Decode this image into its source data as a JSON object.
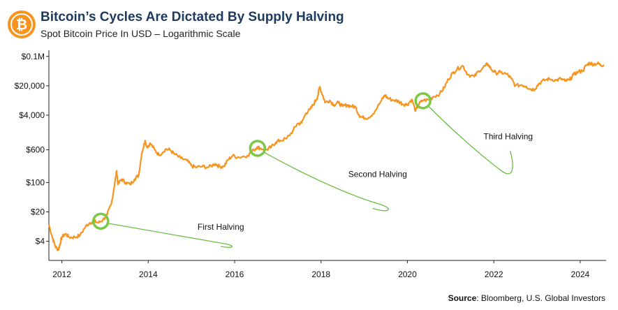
{
  "header": {
    "title": "Bitcoin’s Cycles Are Dictated By Supply Halving",
    "subtitle": "Spot Bitcoin Price In USD – Logarithmic Scale",
    "logo_icon": "bitcoin-coin-icon"
  },
  "footer": {
    "source_label": "Source",
    "source_text": ": Bloomberg, U.S. Global Investors"
  },
  "colors": {
    "line": "#f7941d",
    "halving_ring": "#7ac943",
    "annotation_line": "#5fb832",
    "logo": "#f7941d",
    "title": "#1f3a5f"
  },
  "chart_data": {
    "type": "line",
    "title": "Bitcoin’s Cycles Are Dictated By Supply Halving",
    "subtitle": "Spot Bitcoin Price In USD – Logarithmic Scale",
    "y_scale": "log",
    "xlim": [
      2011.7,
      2024.6
    ],
    "ylim": [
      1.4,
      140000
    ],
    "x_ticks": [
      2012,
      2014,
      2016,
      2018,
      2020,
      2022,
      2024
    ],
    "x_tick_labels": [
      "2012",
      "2014",
      "2016",
      "2018",
      "2020",
      "2022",
      "2024"
    ],
    "y_ticks": [
      4,
      20,
      100,
      600,
      4000,
      20000,
      100000
    ],
    "y_tick_labels": [
      "$4",
      "$20",
      "$100",
      "$600",
      "$4,000",
      "$20,000",
      "$0.1M"
    ],
    "grid": false,
    "series": [
      {
        "values": [
          [
            2011.7,
            10
          ],
          [
            2011.78,
            5
          ],
          [
            2011.85,
            3.0
          ],
          [
            2011.92,
            2.5
          ],
          [
            2011.96,
            3.5
          ],
          [
            2012.0,
            5.0
          ],
          [
            2012.08,
            6.0
          ],
          [
            2012.17,
            5.0
          ],
          [
            2012.3,
            5.0
          ],
          [
            2012.42,
            5.5
          ],
          [
            2012.55,
            9
          ],
          [
            2012.65,
            11
          ],
          [
            2012.75,
            12
          ],
          [
            2012.85,
            11
          ],
          [
            2012.95,
            13
          ],
          [
            2013.05,
            17
          ],
          [
            2013.15,
            32
          ],
          [
            2013.22,
            90
          ],
          [
            2013.27,
            190
          ],
          [
            2013.3,
            90
          ],
          [
            2013.38,
            120
          ],
          [
            2013.48,
            100
          ],
          [
            2013.58,
            90
          ],
          [
            2013.68,
            120
          ],
          [
            2013.78,
            150
          ],
          [
            2013.85,
            500
          ],
          [
            2013.93,
            1000
          ],
          [
            2013.97,
            700
          ],
          [
            2014.05,
            850
          ],
          [
            2014.15,
            600
          ],
          [
            2014.25,
            450
          ],
          [
            2014.4,
            620
          ],
          [
            2014.5,
            600
          ],
          [
            2014.6,
            480
          ],
          [
            2014.75,
            380
          ],
          [
            2014.9,
            330
          ],
          [
            2015.0,
            250
          ],
          [
            2015.1,
            230
          ],
          [
            2015.25,
            240
          ],
          [
            2015.4,
            230
          ],
          [
            2015.55,
            280
          ],
          [
            2015.65,
            240
          ],
          [
            2015.75,
            240
          ],
          [
            2015.85,
            350
          ],
          [
            2015.95,
            430
          ],
          [
            2016.1,
            400
          ],
          [
            2016.3,
            440
          ],
          [
            2016.45,
            600
          ],
          [
            2016.52,
            700
          ],
          [
            2016.6,
            650
          ],
          [
            2016.75,
            610
          ],
          [
            2016.85,
            700
          ],
          [
            2016.95,
            900
          ],
          [
            2017.05,
            1000
          ],
          [
            2017.2,
            1100
          ],
          [
            2017.35,
            1700
          ],
          [
            2017.45,
            2500
          ],
          [
            2017.55,
            2600
          ],
          [
            2017.65,
            4500
          ],
          [
            2017.75,
            5500
          ],
          [
            2017.85,
            8000
          ],
          [
            2017.92,
            11000
          ],
          [
            2017.97,
            19000
          ],
          [
            2018.05,
            11000
          ],
          [
            2018.1,
            8000
          ],
          [
            2018.2,
            9000
          ],
          [
            2018.3,
            7000
          ],
          [
            2018.4,
            8000
          ],
          [
            2018.5,
            6500
          ],
          [
            2018.6,
            7000
          ],
          [
            2018.7,
            6500
          ],
          [
            2018.8,
            6300
          ],
          [
            2018.88,
            4000
          ],
          [
            2018.95,
            3500
          ],
          [
            2019.1,
            3500
          ],
          [
            2019.25,
            5000
          ],
          [
            2019.4,
            9000
          ],
          [
            2019.48,
            12000
          ],
          [
            2019.55,
            10000
          ],
          [
            2019.7,
            9000
          ],
          [
            2019.8,
            8500
          ],
          [
            2019.9,
            7300
          ],
          [
            2020.0,
            7200
          ],
          [
            2020.1,
            9500
          ],
          [
            2020.19,
            5000
          ],
          [
            2020.25,
            7000
          ],
          [
            2020.35,
            9000
          ],
          [
            2020.5,
            9300
          ],
          [
            2020.6,
            11000
          ],
          [
            2020.75,
            13000
          ],
          [
            2020.85,
            18000
          ],
          [
            2020.95,
            29000
          ],
          [
            2021.05,
            40000
          ],
          [
            2021.15,
            50000
          ],
          [
            2021.28,
            60000
          ],
          [
            2021.4,
            37000
          ],
          [
            2021.55,
            33000
          ],
          [
            2021.65,
            45000
          ],
          [
            2021.8,
            60000
          ],
          [
            2021.86,
            66000
          ],
          [
            2021.95,
            48000
          ],
          [
            2022.05,
            40000
          ],
          [
            2022.15,
            42000
          ],
          [
            2022.3,
            38000
          ],
          [
            2022.4,
            30000
          ],
          [
            2022.5,
            20000
          ],
          [
            2022.65,
            21000
          ],
          [
            2022.75,
            19500
          ],
          [
            2022.85,
            16500
          ],
          [
            2022.95,
            16800
          ],
          [
            2023.05,
            23000
          ],
          [
            2023.2,
            28000
          ],
          [
            2023.3,
            29000
          ],
          [
            2023.45,
            27000
          ],
          [
            2023.55,
            29500
          ],
          [
            2023.65,
            26000
          ],
          [
            2023.75,
            27500
          ],
          [
            2023.85,
            37000
          ],
          [
            2023.95,
            43000
          ],
          [
            2024.05,
            45000
          ],
          [
            2024.15,
            62000
          ],
          [
            2024.22,
            70000
          ],
          [
            2024.3,
            65000
          ],
          [
            2024.4,
            68000
          ],
          [
            2024.48,
            62000
          ],
          [
            2024.55,
            63000
          ]
        ]
      }
    ],
    "annotations": [
      {
        "label": "First Halving",
        "x": 2012.9,
        "y": 12
      },
      {
        "label": "Second Halving",
        "x": 2016.53,
        "y": 650
      },
      {
        "label": "Third Halving",
        "x": 2020.36,
        "y": 8800
      }
    ]
  }
}
